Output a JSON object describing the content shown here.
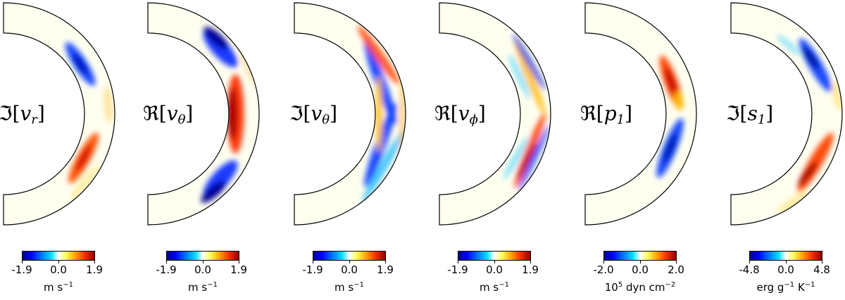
{
  "panels": [
    {
      "id": "vr",
      "label_op": "ℑ",
      "label_var": "v",
      "label_sub": "r",
      "cbar": {
        "min": "-1.9",
        "mid": "0.0",
        "max": "1.9",
        "unit_pre": "m s",
        "unit_sup": "−1",
        "unit_post": ""
      },
      "colormap": "jet-white-center"
    },
    {
      "id": "vth_re",
      "label_op": "ℜ",
      "label_var": "v",
      "label_sub": "θ",
      "cbar": {
        "min": "-1.9",
        "mid": "0.0",
        "max": "1.9",
        "unit_pre": "m s",
        "unit_sup": "−1",
        "unit_post": ""
      },
      "colormap": "jet-white-center"
    },
    {
      "id": "vth_im",
      "label_op": "ℑ",
      "label_var": "v",
      "label_sub": "θ",
      "cbar": {
        "min": "-1.9",
        "mid": "0.0",
        "max": "1.9",
        "unit_pre": "m s",
        "unit_sup": "−1",
        "unit_post": ""
      },
      "colormap": "jet-white-center"
    },
    {
      "id": "vphi",
      "label_op": "ℜ",
      "label_var": "v",
      "label_sub": "ϕ",
      "cbar": {
        "min": "-1.9",
        "mid": "0.0",
        "max": "1.9",
        "unit_pre": "m s",
        "unit_sup": "−1",
        "unit_post": ""
      },
      "colormap": "jet-white-center"
    },
    {
      "id": "p1",
      "label_op": "ℜ",
      "label_var": "p",
      "label_sub": "1",
      "cbar": {
        "min": "-2.0",
        "mid": "0.0",
        "max": "2.0",
        "unit_pre": "10",
        "unit_sup": "5",
        "unit_post": " dyn cm",
        "unit_sup2": "−2"
      },
      "colormap": "jet-white-center"
    },
    {
      "id": "s1",
      "label_op": "ℑ",
      "label_var": "s",
      "label_sub": "1",
      "cbar": {
        "min": "-4.8",
        "mid": "0.0",
        "max": "4.8",
        "unit_pre": "erg g",
        "unit_sup": "−1",
        "unit_post": " K",
        "unit_sup2": "−1"
      },
      "colormap": "jet-white-center"
    }
  ]
}
